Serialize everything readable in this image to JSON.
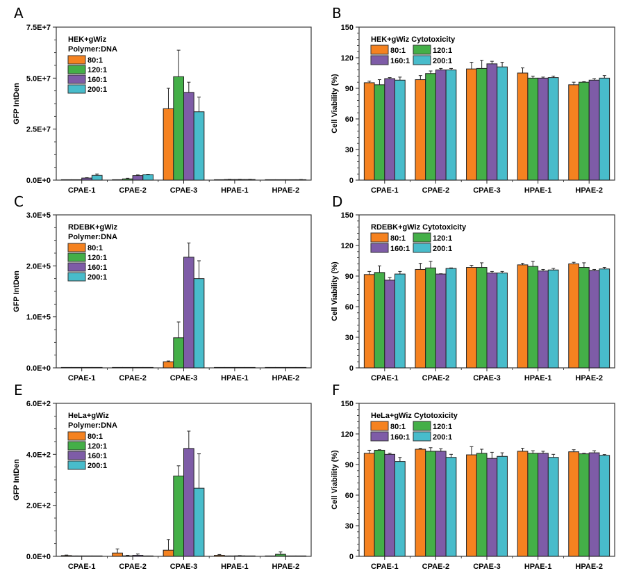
{
  "colors": {
    "80:1": "#F58220",
    "120:1": "#44AF48",
    "160:1": "#7E5CA7",
    "200:1": "#48BCCB"
  },
  "chart_data": [
    {
      "panel": "A",
      "type": "bar",
      "title": "HEK+gWiz",
      "legend_title": "Polymer:DNA",
      "legend_placement": "top-left",
      "legend_columns": 1,
      "xlabel": "",
      "ylabel": "GFP IntDen",
      "ylim": [
        0,
        75000000
      ],
      "yticks": [
        0,
        25000000,
        50000000,
        75000000
      ],
      "ytick_labels": [
        "0.0E+0",
        "2.5E+7",
        "5.0E+7",
        "7.5E+7"
      ],
      "categories": [
        "CPAE-1",
        "CPAE-2",
        "CPAE-3",
        "HPAE-1",
        "HPAE-2"
      ],
      "series": [
        {
          "name": "80:1",
          "values": [
            100000,
            100000,
            35000000,
            100000,
            50000
          ],
          "errors": [
            50000,
            50000,
            10000000,
            50000,
            50000
          ]
        },
        {
          "name": "120:1",
          "values": [
            100000,
            600000,
            50700000,
            300000,
            100000
          ],
          "errors": [
            50000,
            300000,
            13000000,
            100000,
            50000
          ]
        },
        {
          "name": "160:1",
          "values": [
            1000000,
            2200000,
            43000000,
            300000,
            100000
          ],
          "errors": [
            200000,
            400000,
            5000000,
            100000,
            50000
          ]
        },
        {
          "name": "200:1",
          "values": [
            2300000,
            2700000,
            33500000,
            300000,
            200000
          ],
          "errors": [
            700000,
            200000,
            7200000,
            100000,
            100000
          ]
        }
      ]
    },
    {
      "panel": "B",
      "type": "bar",
      "title": "HEK+gWiz Cytotoxicity",
      "legend_title": "",
      "legend_placement": "top-left",
      "legend_columns": 2,
      "xlabel": "",
      "ylabel": "Cell Viability (%)",
      "ylim": [
        0,
        150
      ],
      "yticks": [
        0,
        30,
        60,
        90,
        120,
        150
      ],
      "ytick_labels": [
        "0",
        "30",
        "60",
        "90",
        "120",
        "150"
      ],
      "categories": [
        "CPAE-1",
        "CPAE-2",
        "CPAE-3",
        "HPAE-1",
        "HPAE-2"
      ],
      "series": [
        {
          "name": "80:1",
          "values": [
            95.5,
            98.5,
            109,
            105,
            93.5
          ],
          "errors": [
            1.5,
            4,
            6.5,
            5,
            2.5
          ]
        },
        {
          "name": "120:1",
          "values": [
            93.5,
            104.5,
            109.5,
            100,
            96
          ],
          "errors": [
            5,
            2.5,
            8,
            2,
            0.5
          ]
        },
        {
          "name": "160:1",
          "values": [
            99.5,
            108,
            114,
            100,
            98
          ],
          "errors": [
            1,
            1.5,
            2.5,
            1,
            1.5
          ]
        },
        {
          "name": "200:1",
          "values": [
            98,
            108,
            111,
            100.5,
            100
          ],
          "errors": [
            3,
            1.5,
            4.5,
            1.5,
            2.5
          ]
        }
      ]
    },
    {
      "panel": "C",
      "type": "bar",
      "title": "RDEBK+gWiz",
      "legend_title": "Polymer:DNA",
      "legend_placement": "top-left",
      "legend_columns": 1,
      "xlabel": "",
      "ylabel": "GFP IntDen",
      "ylim": [
        0,
        300000
      ],
      "yticks": [
        0,
        100000,
        200000,
        300000
      ],
      "ytick_labels": [
        "0.0E+0",
        "1.0E+5",
        "2.0E+5",
        "3.0E+5"
      ],
      "categories": [
        "CPAE-1",
        "CPAE-2",
        "CPAE-3",
        "HPAE-1",
        "HPAE-2"
      ],
      "series": [
        {
          "name": "80:1",
          "values": [
            100,
            100,
            12000,
            300,
            100
          ],
          "errors": [
            50,
            50,
            1500,
            100,
            50
          ]
        },
        {
          "name": "120:1",
          "values": [
            100,
            100,
            59000,
            100,
            100
          ],
          "errors": [
            50,
            50,
            31000,
            50,
            50
          ]
        },
        {
          "name": "160:1",
          "values": [
            100,
            300,
            217000,
            100,
            300
          ],
          "errors": [
            50,
            100,
            28000,
            50,
            100
          ]
        },
        {
          "name": "200:1",
          "values": [
            100,
            300,
            175000,
            100,
            100
          ],
          "errors": [
            50,
            100,
            35000,
            50,
            50
          ]
        }
      ]
    },
    {
      "panel": "D",
      "type": "bar",
      "title": "RDEBK+gWiz Cytotoxicity",
      "legend_title": "",
      "legend_placement": "top-left",
      "legend_columns": 2,
      "xlabel": "",
      "ylabel": "Cell Viability (%)",
      "ylim": [
        0,
        150
      ],
      "yticks": [
        0,
        30,
        60,
        90,
        120,
        150
      ],
      "ytick_labels": [
        "0",
        "30",
        "60",
        "90",
        "120",
        "150"
      ],
      "categories": [
        "CPAE-1",
        "CPAE-2",
        "CPAE-3",
        "HPAE-1",
        "HPAE-2"
      ],
      "series": [
        {
          "name": "80:1",
          "values": [
            91.5,
            96.5,
            98.5,
            101,
            102
          ],
          "errors": [
            3,
            6,
            2,
            1.5,
            1.5
          ]
        },
        {
          "name": "120:1",
          "values": [
            93.5,
            98,
            98.5,
            99.5,
            98.5
          ],
          "errors": [
            6.5,
            6.5,
            4.5,
            5,
            4.5
          ]
        },
        {
          "name": "160:1",
          "values": [
            86,
            92,
            93,
            95,
            95.5
          ],
          "errors": [
            2.5,
            0.3,
            1.5,
            1.5,
            1
          ]
        },
        {
          "name": "200:1",
          "values": [
            92,
            97.5,
            93,
            96,
            97
          ],
          "errors": [
            2.5,
            0.5,
            1.5,
            1.5,
            1.5
          ]
        }
      ]
    },
    {
      "panel": "E",
      "type": "bar",
      "title": "HeLa+gWiz",
      "legend_title": "Polymer:DNA",
      "legend_placement": "top-left",
      "legend_columns": 1,
      "xlabel": "",
      "ylabel": "GFP IntDen",
      "ylim": [
        0,
        600
      ],
      "yticks": [
        0,
        200,
        400,
        600
      ],
      "ytick_labels": [
        "0.0E+0",
        "2.0E+2",
        "4.0E+2",
        "6.0E+2"
      ],
      "categories": [
        "CPAE-1",
        "CPAE-2",
        "CPAE-3",
        "HPAE-1",
        "HPAE-2"
      ],
      "series": [
        {
          "name": "80:1",
          "values": [
            3,
            13,
            24,
            4,
            0
          ],
          "errors": [
            2,
            16,
            42,
            3,
            0
          ]
        },
        {
          "name": "120:1",
          "values": [
            1,
            2,
            315,
            1,
            8
          ],
          "errors": [
            0.5,
            2,
            40,
            0.5,
            9
          ]
        },
        {
          "name": "160:1",
          "values": [
            0.5,
            4,
            423,
            2,
            0
          ],
          "errors": [
            0.5,
            5,
            68,
            1,
            0
          ]
        },
        {
          "name": "200:1",
          "values": [
            0.5,
            1,
            267,
            0.5,
            0
          ],
          "errors": [
            0.5,
            0.5,
            135,
            0.5,
            0
          ]
        }
      ]
    },
    {
      "panel": "F",
      "type": "bar",
      "title": "HeLa+gWiz Cytotoxicity",
      "legend_title": "",
      "legend_placement": "top-left",
      "legend_columns": 2,
      "xlabel": "",
      "ylabel": "Cell Viability (%)",
      "ylim": [
        0,
        150
      ],
      "yticks": [
        0,
        30,
        60,
        90,
        120,
        150
      ],
      "ytick_labels": [
        "0",
        "30",
        "60",
        "90",
        "120",
        "150"
      ],
      "categories": [
        "CPAE-1",
        "CPAE-2",
        "CPAE-3",
        "HPAE-1",
        "HPAE-2"
      ],
      "series": [
        {
          "name": "80:1",
          "values": [
            101,
            105,
            99.5,
            103,
            102.5
          ],
          "errors": [
            3,
            0.8,
            8,
            3,
            2
          ]
        },
        {
          "name": "120:1",
          "values": [
            104,
            103,
            101,
            101,
            100.5
          ],
          "errors": [
            0.5,
            3.5,
            4,
            2.5,
            0.5
          ]
        },
        {
          "name": "160:1",
          "values": [
            100,
            103,
            96,
            101,
            101.5
          ],
          "errors": [
            1,
            2.5,
            6,
            2,
            2
          ]
        },
        {
          "name": "200:1",
          "values": [
            93,
            97,
            98,
            97,
            99
          ],
          "errors": [
            4,
            3,
            3.5,
            3,
            0.8
          ]
        }
      ]
    }
  ]
}
